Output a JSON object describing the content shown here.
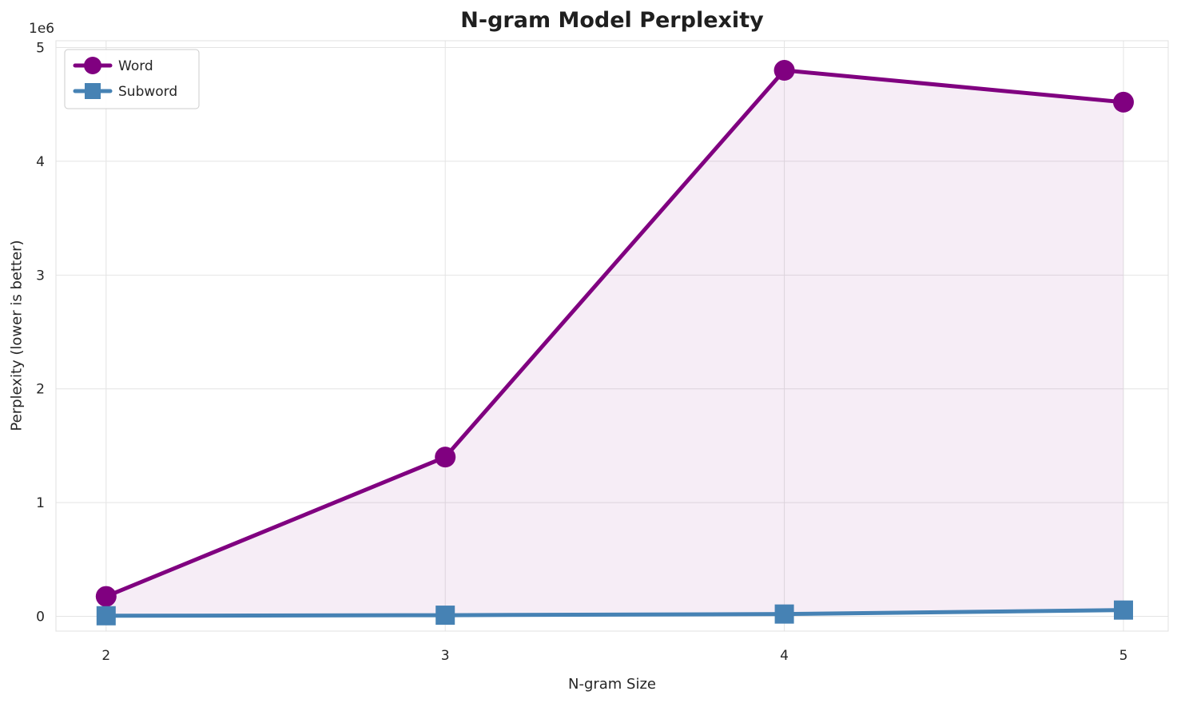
{
  "chart_data": {
    "type": "line",
    "title": "N-gram Model Perplexity",
    "xlabel": "N-gram Size",
    "ylabel": "Perplexity (lower is better)",
    "offset_text": "1e6",
    "x": [
      2,
      3,
      4,
      5
    ],
    "series": [
      {
        "name": "Word",
        "color": "#800080",
        "marker": "circle",
        "values": [
          175000,
          1400000,
          4800000,
          4520000
        ]
      },
      {
        "name": "Subword",
        "color": "#4682B4",
        "marker": "square",
        "values": [
          5000,
          10000,
          20000,
          55000
        ]
      }
    ],
    "fill_between": {
      "upper": "Word",
      "lower": "Subword",
      "color": "#800080",
      "opacity": 0.07
    },
    "xticks": [
      2,
      3,
      4,
      5
    ],
    "xtick_labels": [
      "2",
      "3",
      "4",
      "5"
    ],
    "yticks": [
      0,
      1000000,
      2000000,
      3000000,
      4000000,
      5000000
    ],
    "ytick_labels": [
      "0",
      "1",
      "2",
      "3",
      "4",
      "5"
    ],
    "xlim": [
      1.852,
      5.132
    ],
    "ylim": [
      -130000,
      5060000
    ],
    "grid": true,
    "grid_color": "#e4e4e4",
    "legend_position": "upper left",
    "legend_labels": [
      "Word",
      "Subword"
    ]
  }
}
